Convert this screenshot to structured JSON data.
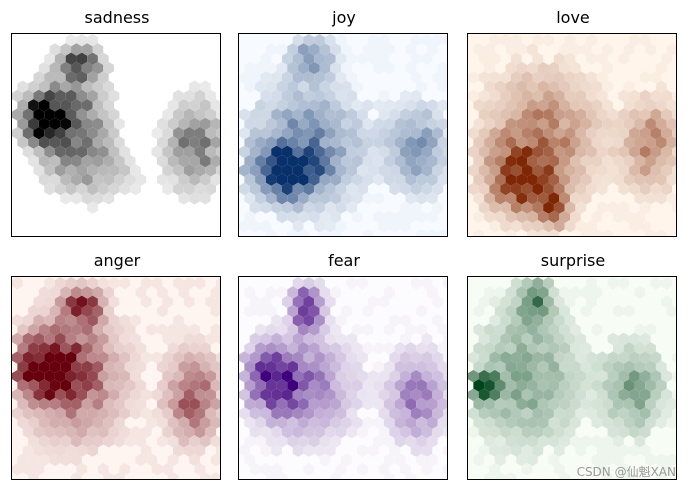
{
  "chart_data": [
    {
      "type": "heatmap",
      "title": "sadness",
      "colormap": "Greys",
      "ramp": [
        "#ffffff",
        "#000000"
      ],
      "bg_intensity": 0.0,
      "clusters": [
        {
          "cx": 0.15,
          "cy": 0.42,
          "sx": 0.08,
          "sy": 0.08,
          "w": 1.0
        },
        {
          "cx": 0.3,
          "cy": 0.42,
          "sx": 0.12,
          "sy": 0.18,
          "w": 0.55
        },
        {
          "cx": 0.33,
          "cy": 0.14,
          "sx": 0.06,
          "sy": 0.05,
          "w": 0.65
        },
        {
          "cx": 0.4,
          "cy": 0.68,
          "sx": 0.14,
          "sy": 0.1,
          "w": 0.25
        },
        {
          "cx": 0.88,
          "cy": 0.55,
          "sx": 0.09,
          "sy": 0.15,
          "w": 0.55
        }
      ]
    },
    {
      "type": "heatmap",
      "title": "joy",
      "colormap": "Blues",
      "ramp": [
        "#f7fbff",
        "#08306b"
      ],
      "bg_intensity": 0.03,
      "clusters": [
        {
          "cx": 0.22,
          "cy": 0.68,
          "sx": 0.1,
          "sy": 0.08,
          "w": 1.0
        },
        {
          "cx": 0.32,
          "cy": 0.56,
          "sx": 0.18,
          "sy": 0.2,
          "w": 0.55
        },
        {
          "cx": 0.35,
          "cy": 0.12,
          "sx": 0.07,
          "sy": 0.07,
          "w": 0.45
        },
        {
          "cx": 0.86,
          "cy": 0.57,
          "sx": 0.1,
          "sy": 0.15,
          "w": 0.45
        }
      ]
    },
    {
      "type": "heatmap",
      "title": "love",
      "colormap": "Oranges",
      "ramp": [
        "#fff5eb",
        "#7f2704"
      ],
      "bg_intensity": 0.04,
      "clusters": [
        {
          "cx": 0.26,
          "cy": 0.72,
          "sx": 0.1,
          "sy": 0.1,
          "w": 0.9
        },
        {
          "cx": 0.35,
          "cy": 0.52,
          "sx": 0.18,
          "sy": 0.22,
          "w": 0.55
        },
        {
          "cx": 0.42,
          "cy": 0.87,
          "sx": 0.04,
          "sy": 0.05,
          "w": 0.9
        },
        {
          "cx": 0.88,
          "cy": 0.55,
          "sx": 0.09,
          "sy": 0.15,
          "w": 0.5
        }
      ]
    },
    {
      "type": "heatmap",
      "title": "anger",
      "colormap": "Reds",
      "ramp": [
        "#fff5f0",
        "#67000d"
      ],
      "bg_intensity": 0.06,
      "clusters": [
        {
          "cx": 0.15,
          "cy": 0.45,
          "sx": 0.1,
          "sy": 0.1,
          "w": 0.95
        },
        {
          "cx": 0.3,
          "cy": 0.48,
          "sx": 0.16,
          "sy": 0.22,
          "w": 0.6
        },
        {
          "cx": 0.34,
          "cy": 0.14,
          "sx": 0.06,
          "sy": 0.06,
          "w": 0.8
        },
        {
          "cx": 0.87,
          "cy": 0.6,
          "sx": 0.09,
          "sy": 0.15,
          "w": 0.6
        }
      ]
    },
    {
      "type": "heatmap",
      "title": "fear",
      "colormap": "Purples",
      "ramp": [
        "#fcfbfd",
        "#3f007d"
      ],
      "bg_intensity": 0.03,
      "clusters": [
        {
          "cx": 0.16,
          "cy": 0.5,
          "sx": 0.1,
          "sy": 0.1,
          "w": 0.75
        },
        {
          "cx": 0.32,
          "cy": 0.55,
          "sx": 0.16,
          "sy": 0.18,
          "w": 0.45
        },
        {
          "cx": 0.33,
          "cy": 0.15,
          "sx": 0.05,
          "sy": 0.07,
          "w": 0.95
        },
        {
          "cx": 0.86,
          "cy": 0.6,
          "sx": 0.09,
          "sy": 0.15,
          "w": 0.5
        }
      ]
    },
    {
      "type": "heatmap",
      "title": "surprise",
      "colormap": "Greens",
      "ramp": [
        "#f7fcf5",
        "#00441b"
      ],
      "bg_intensity": 0.04,
      "clusters": [
        {
          "cx": 0.08,
          "cy": 0.55,
          "sx": 0.05,
          "sy": 0.05,
          "w": 1.0
        },
        {
          "cx": 0.28,
          "cy": 0.5,
          "sx": 0.17,
          "sy": 0.22,
          "w": 0.45
        },
        {
          "cx": 0.32,
          "cy": 0.12,
          "sx": 0.06,
          "sy": 0.08,
          "w": 0.55
        },
        {
          "cx": 0.8,
          "cy": 0.55,
          "sx": 0.1,
          "sy": 0.15,
          "w": 0.45
        }
      ]
    }
  ],
  "watermark": "CSDN @仙魁XAN"
}
